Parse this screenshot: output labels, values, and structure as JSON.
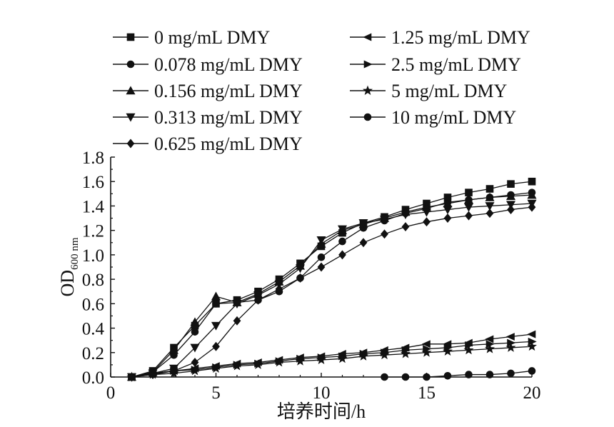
{
  "chart_data": {
    "type": "line",
    "xlabel": "培养时间/h",
    "ylabel": "OD",
    "ylabel_sub": "600 nm",
    "xlim": [
      0,
      20
    ],
    "ylim": [
      0,
      1.8
    ],
    "xticks": [
      "0",
      "5",
      "10",
      "15",
      "20"
    ],
    "yticks": [
      "0.0",
      "0.2",
      "0.4",
      "0.6",
      "0.8",
      "1.0",
      "1.2",
      "1.4",
      "1.6",
      "1.8"
    ],
    "legend_position": "top",
    "series": [
      {
        "name": "0 mg/mL DMY",
        "marker": "square",
        "x": [
          1,
          2,
          3,
          4,
          5,
          6,
          7,
          8,
          9,
          10,
          11,
          12,
          13,
          14,
          15,
          16,
          17,
          18,
          19,
          20
        ],
        "y": [
          0.0,
          0.05,
          0.24,
          0.42,
          0.6,
          0.63,
          0.7,
          0.8,
          0.93,
          1.07,
          1.18,
          1.26,
          1.31,
          1.37,
          1.42,
          1.47,
          1.51,
          1.54,
          1.58,
          1.6
        ]
      },
      {
        "name": "0.078 mg/mL DMY",
        "marker": "circle",
        "x": [
          1,
          2,
          3,
          4,
          5,
          6,
          7,
          8,
          9,
          10,
          11,
          12,
          13,
          14,
          15,
          16,
          17,
          18,
          19,
          20
        ],
        "y": [
          0.0,
          0.04,
          0.18,
          0.37,
          0.6,
          0.61,
          0.63,
          0.7,
          0.81,
          0.98,
          1.11,
          1.22,
          1.28,
          1.34,
          1.38,
          1.43,
          1.45,
          1.47,
          1.49,
          1.51
        ]
      },
      {
        "name": "0.156 mg/mL DMY",
        "marker": "triangle-up",
        "x": [
          1,
          2,
          3,
          4,
          5,
          6,
          7,
          8,
          9,
          10,
          11,
          12,
          13,
          14,
          15,
          16,
          17,
          18,
          19,
          20
        ],
        "y": [
          0.0,
          0.04,
          0.22,
          0.45,
          0.66,
          0.61,
          0.68,
          0.78,
          0.91,
          1.09,
          1.2,
          1.25,
          1.3,
          1.35,
          1.39,
          1.42,
          1.45,
          1.47,
          1.48,
          1.49
        ]
      },
      {
        "name": "0.313 mg/mL DMY",
        "marker": "triangle-down",
        "x": [
          1,
          2,
          3,
          4,
          5,
          6,
          7,
          8,
          9,
          10,
          11,
          12,
          13,
          14,
          15,
          16,
          17,
          18,
          19,
          20
        ],
        "y": [
          0.0,
          0.03,
          0.07,
          0.24,
          0.42,
          0.6,
          0.67,
          0.76,
          0.89,
          1.12,
          1.21,
          1.26,
          1.29,
          1.33,
          1.35,
          1.37,
          1.39,
          1.4,
          1.41,
          1.42
        ]
      },
      {
        "name": "0.625 mg/mL DMY",
        "marker": "diamond",
        "x": [
          1,
          2,
          3,
          4,
          5,
          6,
          7,
          8,
          9,
          10,
          11,
          12,
          13,
          14,
          15,
          16,
          17,
          18,
          19,
          20
        ],
        "y": [
          0.0,
          0.02,
          0.05,
          0.12,
          0.25,
          0.46,
          0.63,
          0.72,
          0.81,
          0.9,
          1.0,
          1.1,
          1.17,
          1.23,
          1.27,
          1.3,
          1.32,
          1.34,
          1.37,
          1.39
        ]
      },
      {
        "name": "1.25 mg/mL DMY",
        "marker": "triangle-left",
        "x": [
          1,
          2,
          3,
          4,
          5,
          6,
          7,
          8,
          9,
          10,
          11,
          12,
          13,
          14,
          15,
          16,
          17,
          18,
          19,
          20
        ],
        "y": [
          0.0,
          0.03,
          0.05,
          0.07,
          0.09,
          0.11,
          0.12,
          0.14,
          0.16,
          0.17,
          0.19,
          0.2,
          0.22,
          0.24,
          0.27,
          0.27,
          0.28,
          0.31,
          0.33,
          0.35
        ]
      },
      {
        "name": "2.5 mg/mL DMY",
        "marker": "triangle-right",
        "x": [
          1,
          2,
          3,
          4,
          5,
          6,
          7,
          8,
          9,
          10,
          11,
          12,
          13,
          14,
          15,
          16,
          17,
          18,
          19,
          20
        ],
        "y": [
          0.0,
          0.03,
          0.05,
          0.06,
          0.08,
          0.1,
          0.11,
          0.13,
          0.15,
          0.16,
          0.17,
          0.19,
          0.2,
          0.22,
          0.23,
          0.24,
          0.26,
          0.27,
          0.28,
          0.29
        ]
      },
      {
        "name": "5 mg/mL DMY",
        "marker": "star",
        "x": [
          1,
          2,
          3,
          4,
          5,
          6,
          7,
          8,
          9,
          10,
          11,
          12,
          13,
          14,
          15,
          16,
          17,
          18,
          19,
          20
        ],
        "y": [
          0.0,
          0.02,
          0.03,
          0.05,
          0.07,
          0.09,
          0.1,
          0.12,
          0.13,
          0.14,
          0.15,
          0.17,
          0.18,
          0.19,
          0.2,
          0.21,
          0.22,
          0.23,
          0.24,
          0.25
        ]
      },
      {
        "name": "10 mg/mL DMY",
        "marker": "circle",
        "x": [
          13,
          14,
          15,
          16,
          17,
          18,
          19,
          20
        ],
        "y": [
          0.0,
          0.0,
          0.0,
          0.01,
          0.02,
          0.02,
          0.03,
          0.05
        ]
      }
    ]
  }
}
